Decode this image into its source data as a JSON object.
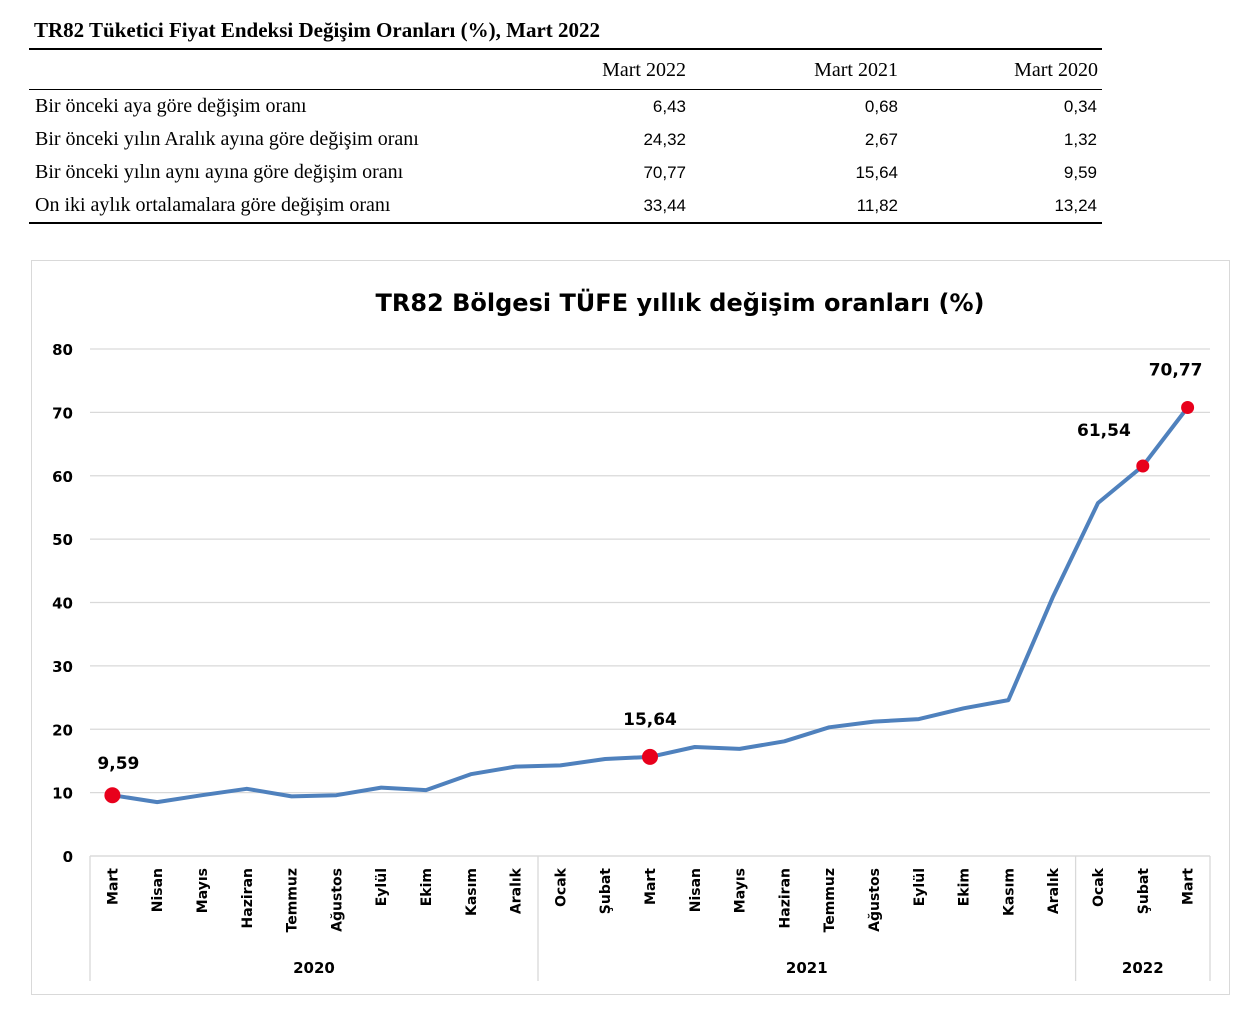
{
  "table": {
    "title": "TR82 Tüketici Fiyat Endeksi Değişim Oranları (%), Mart 2022",
    "columns": [
      "Mart 2022",
      "Mart 2021",
      "Mart 2020"
    ],
    "rows": [
      {
        "label": "Bir önceki aya göre değişim oranı",
        "values": [
          "6,43",
          "0,68",
          "0,34"
        ]
      },
      {
        "label": "Bir önceki yılın Aralık ayına göre değişim oranı",
        "values": [
          "24,32",
          "2,67",
          "1,32"
        ]
      },
      {
        "label": "Bir önceki yılın aynı ayına göre değişim oranı",
        "values": [
          "70,77",
          "15,64",
          "9,59"
        ]
      },
      {
        "label": "On iki aylık ortalamalara göre değişim oranı",
        "values": [
          "33,44",
          "11,82",
          "13,24"
        ]
      }
    ]
  },
  "chart_data": {
    "type": "line",
    "title": "TR82 Bölgesi TÜFE yıllık değişim oranları (%)",
    "ylim": [
      0,
      80
    ],
    "yticks": [
      0,
      10,
      20,
      30,
      40,
      50,
      60,
      70,
      80
    ],
    "grid": true,
    "categories": [
      "Mart",
      "Nisan",
      "Mayıs",
      "Haziran",
      "Temmuz",
      "Ağustos",
      "Eylül",
      "Ekim",
      "Kasım",
      "Aralık",
      "Ocak",
      "Şubat",
      "Mart",
      "Nisan",
      "Mayıs",
      "Haziran",
      "Temmuz",
      "Ağustos",
      "Eylül",
      "Ekim",
      "Kasım",
      "Aralık",
      "Ocak",
      "Şubat",
      "Mart"
    ],
    "year_groups": [
      {
        "label": "2020",
        "count": 10
      },
      {
        "label": "2021",
        "count": 12
      },
      {
        "label": "2022",
        "count": 3
      }
    ],
    "series": [
      {
        "color": "#4f81bd",
        "values": [
          9.59,
          8.5,
          9.6,
          10.6,
          9.4,
          9.6,
          10.8,
          10.4,
          12.9,
          14.1,
          14.3,
          15.3,
          15.64,
          17.2,
          16.9,
          18.1,
          20.3,
          21.2,
          21.6,
          23.3,
          24.6,
          41.0,
          55.7,
          61.54,
          70.77
        ]
      }
    ],
    "highlights": [
      {
        "index": 0,
        "label": "9,59"
      },
      {
        "index": 12,
        "label": "15,64"
      },
      {
        "index": 23,
        "label": "61,54"
      },
      {
        "index": 24,
        "label": "70,77"
      }
    ],
    "highlight_color": "#e8001c"
  }
}
